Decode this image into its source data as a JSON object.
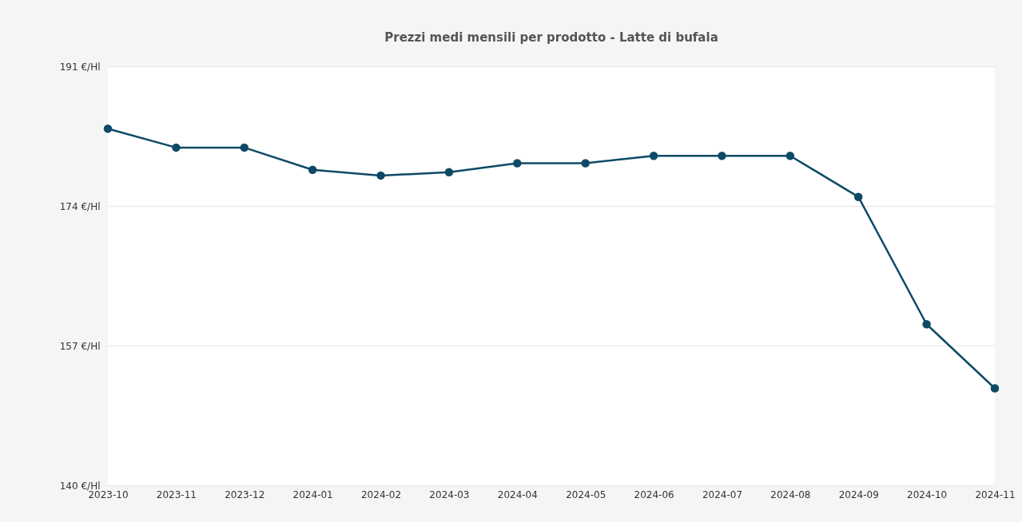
{
  "chart_data": {
    "type": "line",
    "title": "Prezzi medi mensili per prodotto - Latte di bufala",
    "categories": [
      "2023-10",
      "2023-11",
      "2023-12",
      "2024-01",
      "2024-02",
      "2024-03",
      "2024-04",
      "2024-05",
      "2024-06",
      "2024-07",
      "2024-08",
      "2024-09",
      "2024-10",
      "2024-11"
    ],
    "series": [
      {
        "color": "#0e4a66",
        "values": [
          183.4,
          181.1,
          181.1,
          178.4,
          177.7,
          178.1,
          179.2,
          179.2,
          180.1,
          180.1,
          180.1,
          175.1,
          159.6,
          151.8
        ]
      }
    ],
    "ylim": [
      140,
      191
    ],
    "yticks": [
      {
        "value": 140,
        "label": "140 €/Hl"
      },
      {
        "value": 157,
        "label": "157 €/Hl"
      },
      {
        "value": 174,
        "label": "174 €/Hl"
      },
      {
        "value": 191,
        "label": "191 €/Hl"
      }
    ],
    "grid": "y",
    "marker": "circle",
    "line_style": "solid"
  }
}
